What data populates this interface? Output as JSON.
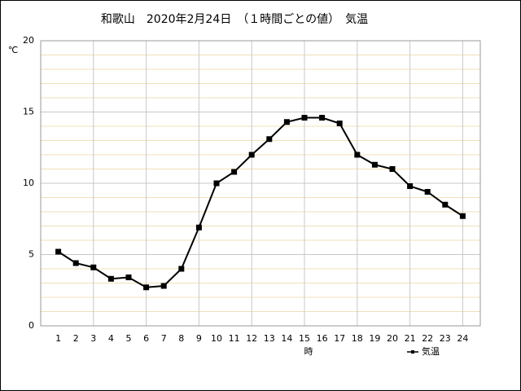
{
  "chart_data": {
    "type": "line",
    "title": "和歌山　2020年2月24日　（１時間ごとの値）　気温",
    "y_label": "℃",
    "x_label": "時",
    "x": [
      1,
      2,
      3,
      4,
      5,
      6,
      7,
      8,
      9,
      10,
      11,
      12,
      13,
      14,
      15,
      16,
      17,
      18,
      19,
      20,
      21,
      22,
      23,
      24
    ],
    "series": [
      {
        "name": "気温",
        "color": "#000000",
        "values": [
          5.2,
          4.4,
          4.1,
          3.3,
          3.4,
          2.7,
          2.8,
          4.0,
          6.9,
          10.0,
          10.8,
          12.0,
          13.1,
          14.3,
          14.6,
          14.6,
          14.2,
          12.0,
          11.3,
          11.0,
          9.8,
          9.4,
          8.5,
          7.7
        ]
      }
    ],
    "xlim": [
      0,
      25
    ],
    "xticks": [
      1,
      2,
      3,
      4,
      5,
      6,
      7,
      8,
      9,
      10,
      11,
      12,
      13,
      14,
      15,
      16,
      17,
      18,
      19,
      20,
      21,
      22,
      23,
      24
    ],
    "xgrid": [
      3,
      6,
      9,
      12,
      15,
      18,
      21,
      24
    ],
    "ylim": [
      0,
      20
    ],
    "yticks": [
      0,
      5,
      10,
      15,
      20
    ],
    "yminorticks": [
      1,
      2,
      3,
      4,
      6,
      7,
      8,
      9,
      11,
      12,
      13,
      14,
      16,
      17,
      18,
      19
    ],
    "grid": true,
    "legend": "bottom-right"
  }
}
